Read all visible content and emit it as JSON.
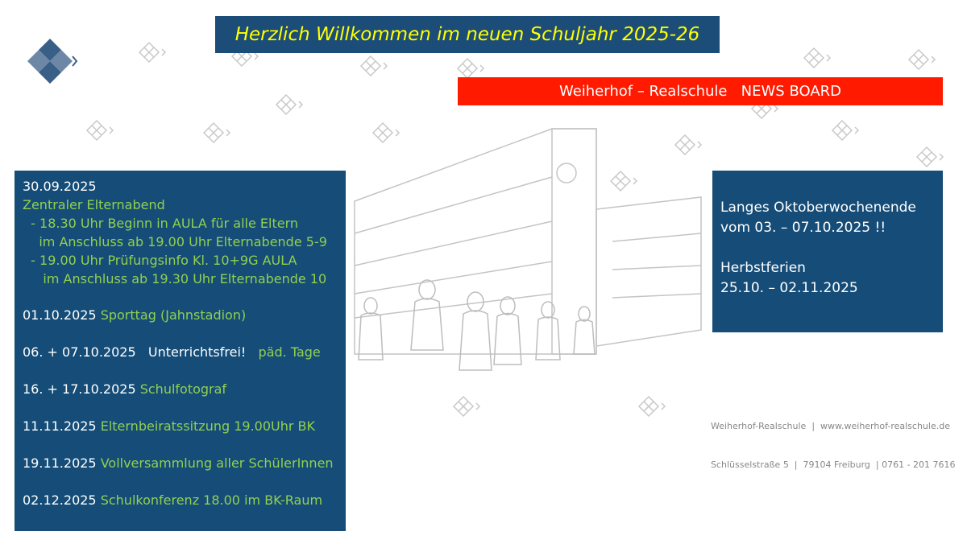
{
  "title": "Herzlich Willkommen im neuen Schuljahr 2025-26",
  "news_bar": "Weiherhof – Realschule   NEWS BOARD",
  "colors": {
    "panel": "#154d78",
    "accent_green": "#92d050",
    "news_red": "#ff1a00",
    "title_yellow": "#ffff00"
  },
  "logo_icon": "diamond-grid-logo",
  "left_panel": {
    "first_date": "30.09.2025",
    "first_title": "Zentraler Elternabend",
    "first_lines": [
      "  - 18.30 Uhr Beginn in AULA für alle Eltern",
      "    im Anschluss ab 19.00 Uhr Elternabende 5-9",
      "  - 19.00 Uhr Prüfungsinfo Kl. 10+9G AULA",
      "     im Anschluss ab 19.30 Uhr Elternabende 10"
    ],
    "events": [
      {
        "date": "01.10.2025 ",
        "white": "",
        "text": "Sporttag (Jahnstadion)"
      },
      {
        "date": "06. + 07.10.2025",
        "white": "   Unterrichtsfrei!  ",
        "text": " päd. Tage"
      },
      {
        "date": "16. + 17.10.2025 ",
        "white": "",
        "text": "Schulfotograf"
      },
      {
        "date": "11.11.2025 ",
        "white": "",
        "text": "Elternbeiratssitzung 19.00Uhr BK"
      },
      {
        "date": "19.11.2025 ",
        "white": "",
        "text": "Vollversammlung aller SchülerInnen"
      },
      {
        "date": "02.12.2025 ",
        "white": "",
        "text": "Schulkonferenz 18.00 im BK-Raum"
      }
    ]
  },
  "right_panel": {
    "line1": "Langes Oktoberwochenende",
    "line2": "vom 03. – 07.10.2025 !!",
    "line3": "Herbstferien",
    "line4": "25.10. – 02.11.2025"
  },
  "footer": {
    "line1": "Weiherhof-Realschule  |  www.weiherhof-realschule.de",
    "line2": "Schlüsselstraße 5  |  79104 Freiburg  | 0761 - 201 7616"
  }
}
